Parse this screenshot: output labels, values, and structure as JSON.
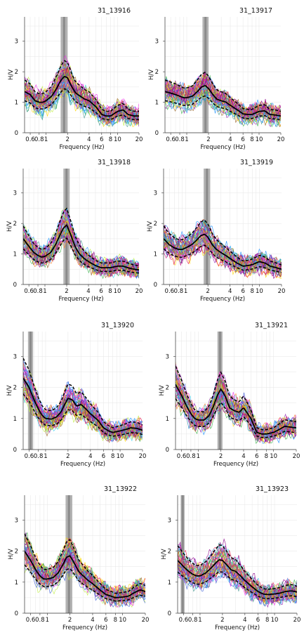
{
  "chart_data": [
    {
      "type": "line",
      "title": "31_13916",
      "xlabel": "Frequency (Hz)",
      "ylabel": "H/V",
      "xlim": [
        0.5,
        20
      ],
      "ylim": [
        0,
        3.8
      ],
      "xscale": "log",
      "xticks": [
        "0.6",
        "0.8",
        "1",
        "2",
        "4",
        "6",
        "8",
        "10",
        "20"
      ],
      "yticks": [
        "0",
        "1",
        "2",
        "3"
      ],
      "peak_band": [
        1.6,
        2.0
      ],
      "grid": true,
      "mean_curve": {
        "x": [
          0.5,
          0.6,
          0.7,
          0.8,
          0.9,
          1.0,
          1.2,
          1.4,
          1.6,
          1.8,
          2.0,
          2.3,
          2.6,
          3.0,
          3.5,
          4.0,
          5.0,
          6.0,
          7.0,
          8.0,
          10.0,
          12.0,
          14.0,
          17.0,
          20.0
        ],
        "y": [
          1.35,
          1.25,
          1.05,
          1.0,
          1.0,
          1.05,
          1.2,
          1.45,
          1.7,
          1.85,
          1.8,
          1.5,
          1.3,
          1.2,
          1.1,
          1.05,
          0.85,
          0.6,
          0.55,
          0.55,
          0.7,
          0.75,
          0.6,
          0.55,
          0.55
        ]
      }
    },
    {
      "type": "line",
      "title": "31_13917",
      "xlabel": "Frequency (Hz)",
      "ylabel": "H/V",
      "xlim": [
        0.5,
        20
      ],
      "ylim": [
        0,
        3.8
      ],
      "xscale": "log",
      "xticks": [
        "0.6",
        "0.8",
        "1",
        "2",
        "4",
        "6",
        "8",
        "10",
        "20"
      ],
      "yticks": [
        "0",
        "1",
        "2",
        "3"
      ],
      "peak_band": [
        1.65,
        2.0
      ],
      "grid": true,
      "mean_curve": {
        "x": [
          0.5,
          0.6,
          0.7,
          0.8,
          0.9,
          1.0,
          1.2,
          1.4,
          1.6,
          1.8,
          2.0,
          2.3,
          2.6,
          3.0,
          3.5,
          4.0,
          5.0,
          6.0,
          7.0,
          8.0,
          10.0,
          12.0,
          14.0,
          17.0,
          20.0
        ],
        "y": [
          1.35,
          1.3,
          1.25,
          1.2,
          1.15,
          1.15,
          1.2,
          1.35,
          1.5,
          1.55,
          1.45,
          1.25,
          1.1,
          1.05,
          1.0,
          0.9,
          0.75,
          0.62,
          0.6,
          0.6,
          0.7,
          0.72,
          0.6,
          0.58,
          0.55
        ]
      }
    },
    {
      "type": "line",
      "title": "31_13918",
      "xlabel": "Frequency (Hz)",
      "ylabel": "H/V",
      "xlim": [
        0.5,
        20
      ],
      "ylim": [
        0,
        3.8
      ],
      "xscale": "log",
      "xticks": [
        "0.6",
        "0.8",
        "1",
        "2",
        "4",
        "6",
        "8",
        "10",
        "20"
      ],
      "yticks": [
        "0",
        "1",
        "2",
        "3"
      ],
      "peak_band": [
        1.8,
        2.2
      ],
      "grid": true,
      "mean_curve": {
        "x": [
          0.5,
          0.6,
          0.7,
          0.8,
          0.9,
          1.0,
          1.2,
          1.4,
          1.6,
          1.8,
          2.0,
          2.3,
          2.6,
          3.0,
          3.5,
          4.0,
          5.0,
          6.0,
          7.0,
          8.0,
          10.0,
          12.0,
          14.0,
          17.0,
          20.0
        ],
        "y": [
          1.5,
          1.25,
          1.05,
          0.95,
          0.9,
          0.92,
          1.05,
          1.3,
          1.6,
          1.85,
          1.95,
          1.6,
          1.25,
          1.0,
          0.85,
          0.75,
          0.62,
          0.55,
          0.55,
          0.55,
          0.6,
          0.6,
          0.55,
          0.5,
          0.48
        ]
      }
    },
    {
      "type": "line",
      "title": "31_13919",
      "xlabel": "Frequency (Hz)",
      "ylabel": "H/V",
      "xlim": [
        0.5,
        20
      ],
      "ylim": [
        0,
        3.8
      ],
      "xscale": "log",
      "xticks": [
        "0.6",
        "0.8",
        "1",
        "2",
        "4",
        "6",
        "8",
        "10",
        "20"
      ],
      "yticks": [
        "0",
        "1",
        "2",
        "3"
      ],
      "peak_band": [
        1.75,
        2.15
      ],
      "grid": true,
      "mean_curve": {
        "x": [
          0.5,
          0.6,
          0.7,
          0.8,
          0.9,
          1.0,
          1.2,
          1.4,
          1.6,
          1.8,
          2.0,
          2.3,
          2.6,
          3.0,
          3.5,
          4.0,
          5.0,
          6.0,
          7.0,
          8.0,
          10.0,
          12.0,
          14.0,
          17.0,
          20.0
        ],
        "y": [
          1.5,
          1.3,
          1.2,
          1.15,
          1.15,
          1.2,
          1.3,
          1.45,
          1.6,
          1.65,
          1.55,
          1.3,
          1.15,
          1.05,
          0.95,
          0.85,
          0.7,
          0.6,
          0.62,
          0.65,
          0.75,
          0.7,
          0.6,
          0.55,
          0.5
        ]
      }
    },
    {
      "type": "line",
      "title": "31_13920",
      "xlabel": "Frequency (Hz)",
      "ylabel": "H/V",
      "xlim": [
        0.5,
        20
      ],
      "ylim": [
        0,
        3.8
      ],
      "xscale": "log",
      "xticks": [
        "0.6",
        "0.8",
        "1",
        "2",
        "4",
        "6",
        "8",
        "10",
        "20"
      ],
      "yticks": [
        "0",
        "1",
        "2",
        "3"
      ],
      "peak_band": [
        0.58,
        0.68
      ],
      "grid": true,
      "mean_curve": {
        "x": [
          0.5,
          0.6,
          0.7,
          0.8,
          0.9,
          1.0,
          1.2,
          1.4,
          1.6,
          1.8,
          2.0,
          2.3,
          2.6,
          3.0,
          3.5,
          4.0,
          5.0,
          6.0,
          7.0,
          8.0,
          10.0,
          12.0,
          14.0,
          17.0,
          20.0
        ],
        "y": [
          2.3,
          2.0,
          1.6,
          1.3,
          1.1,
          1.0,
          0.98,
          1.05,
          1.2,
          1.45,
          1.65,
          1.6,
          1.4,
          1.45,
          1.3,
          1.15,
          0.95,
          0.7,
          0.6,
          0.55,
          0.6,
          0.65,
          0.7,
          0.68,
          0.62
        ]
      }
    },
    {
      "type": "line",
      "title": "31_13921",
      "xlabel": "Frequency (Hz)",
      "ylabel": "H/V",
      "xlim": [
        0.5,
        20
      ],
      "ylim": [
        0,
        3.8
      ],
      "xscale": "log",
      "xticks": [
        "0.6",
        "0.8",
        "1",
        "2",
        "4",
        "6",
        "8",
        "10",
        "20"
      ],
      "yticks": [
        "0",
        "1",
        "2",
        "3"
      ],
      "peak_band": [
        1.8,
        2.1
      ],
      "grid": true,
      "mean_curve": {
        "x": [
          0.5,
          0.6,
          0.7,
          0.8,
          0.9,
          1.0,
          1.2,
          1.4,
          1.6,
          1.8,
          2.0,
          2.3,
          2.6,
          3.0,
          3.5,
          4.0,
          5.0,
          6.0,
          7.0,
          8.0,
          10.0,
          12.0,
          14.0,
          17.0,
          20.0
        ],
        "y": [
          2.1,
          1.75,
          1.4,
          1.15,
          1.0,
          0.95,
          0.95,
          1.1,
          1.4,
          1.75,
          1.95,
          1.7,
          1.35,
          1.25,
          1.2,
          1.35,
          1.0,
          0.55,
          0.5,
          0.5,
          0.55,
          0.65,
          0.75,
          0.72,
          0.7
        ]
      }
    },
    {
      "type": "line",
      "title": "31_13922",
      "xlabel": "Frequency (Hz)",
      "ylabel": "H/V",
      "xlim": [
        0.5,
        20
      ],
      "ylim": [
        0,
        3.8
      ],
      "xscale": "log",
      "xticks": [
        "0.6",
        "0.8",
        "1",
        "2",
        "4",
        "6",
        "8",
        "10",
        "20"
      ],
      "yticks": [
        "0",
        "1",
        "2",
        "3"
      ],
      "peak_band": [
        1.75,
        2.15
      ],
      "grid": true,
      "mean_curve": {
        "x": [
          0.5,
          0.6,
          0.7,
          0.8,
          0.9,
          1.0,
          1.2,
          1.4,
          1.6,
          1.8,
          2.0,
          2.3,
          2.6,
          3.0,
          3.5,
          4.0,
          5.0,
          6.0,
          7.0,
          8.0,
          10.0,
          12.0,
          14.0,
          17.0,
          20.0
        ],
        "y": [
          2.0,
          1.7,
          1.4,
          1.2,
          1.1,
          1.1,
          1.15,
          1.3,
          1.55,
          1.8,
          1.85,
          1.6,
          1.35,
          1.2,
          1.05,
          0.95,
          0.75,
          0.6,
          0.55,
          0.5,
          0.52,
          0.55,
          0.65,
          0.75,
          0.7
        ]
      }
    },
    {
      "type": "line",
      "title": "31_13923",
      "xlabel": "Frequency (Hz)",
      "ylabel": "H/V",
      "xlim": [
        0.5,
        20
      ],
      "ylim": [
        0,
        3.8
      ],
      "xscale": "log",
      "xticks": [
        "0.6",
        "0.8",
        "1",
        "2",
        "4",
        "6",
        "8",
        "10",
        "20"
      ],
      "yticks": [
        "0",
        "1",
        "2",
        "3"
      ],
      "peak_band": [
        0.55,
        0.62
      ],
      "grid": true,
      "mean_curve": {
        "x": [
          0.5,
          0.6,
          0.7,
          0.8,
          0.9,
          1.0,
          1.2,
          1.4,
          1.6,
          1.8,
          2.0,
          2.3,
          2.6,
          3.0,
          3.5,
          4.0,
          5.0,
          6.0,
          7.0,
          8.0,
          10.0,
          12.0,
          14.0,
          17.0,
          20.0
        ],
        "y": [
          1.7,
          1.5,
          1.35,
          1.25,
          1.2,
          1.2,
          1.3,
          1.45,
          1.6,
          1.72,
          1.7,
          1.55,
          1.4,
          1.35,
          1.2,
          1.05,
          0.85,
          0.7,
          0.62,
          0.6,
          0.62,
          0.65,
          0.7,
          0.72,
          0.68
        ]
      }
    }
  ],
  "colors": {
    "window_curves": [
      "#e6194b",
      "#3cb44b",
      "#4363d8",
      "#f58231",
      "#911eb4",
      "#42d4f4",
      "#f032e6",
      "#bfef45",
      "#469990",
      "#9a6324",
      "#c71585",
      "#ffd700",
      "#1e90ff",
      "#8b008b"
    ],
    "mean_curve": "#000000",
    "peak_band": "#9a9a9a"
  }
}
